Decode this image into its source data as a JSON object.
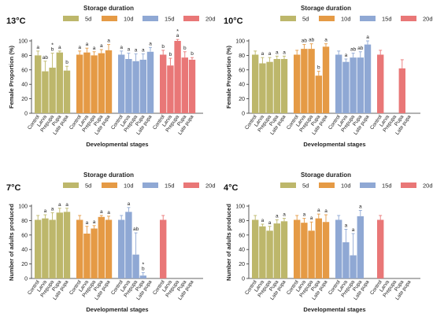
{
  "chart_data": [
    {
      "type": "bar",
      "panel": "13°C",
      "legend_title": "Storage duration",
      "legend": [
        {
          "name": "5d",
          "color": "#BDB76B"
        },
        {
          "name": "10d",
          "color": "#E59A45"
        },
        {
          "name": "15d",
          "color": "#8FA8D4"
        },
        {
          "name": "20d",
          "color": "#E97777"
        }
      ],
      "ylabel": "Female Proportion (%)",
      "xlabel": "Developmental stages",
      "ylim": [
        0,
        100
      ],
      "yticks": [
        0,
        20,
        40,
        60,
        80,
        100
      ],
      "categories": [
        "Control",
        "Larva",
        "Prepupa",
        "Pupa",
        "Late pupa"
      ],
      "series": [
        {
          "name": "5d",
          "values": [
            80,
            58,
            63,
            84,
            59
          ],
          "errors": [
            6,
            14,
            20,
            2,
            6
          ],
          "labels": [
            "a",
            "ab",
            "b",
            "a",
            "b"
          ],
          "marks": [
            "",
            "",
            "*",
            "",
            ""
          ]
        },
        {
          "name": "10d",
          "values": [
            81,
            84,
            80,
            83,
            87
          ],
          "errors": [
            5,
            6,
            5,
            5,
            8
          ],
          "labels": [
            "a",
            "a",
            "a",
            "a",
            "a"
          ],
          "marks": [
            "",
            "",
            "",
            "",
            ""
          ]
        },
        {
          "name": "15d",
          "values": [
            81,
            75,
            72,
            74,
            85
          ],
          "errors": [
            5,
            8,
            10,
            8,
            6
          ],
          "labels": [
            "a",
            "a",
            "a",
            "a",
            "a"
          ],
          "marks": [
            "",
            "",
            "",
            "",
            ""
          ]
        },
        {
          "name": "20d",
          "values": [
            81,
            66,
            100,
            77,
            74
          ],
          "errors": [
            6,
            10,
            2,
            8,
            3
          ],
          "labels": [
            "b",
            "b",
            "a",
            "b",
            "b"
          ],
          "marks": [
            "",
            "",
            "*",
            "",
            ""
          ]
        }
      ]
    },
    {
      "type": "bar",
      "panel": "10°C",
      "legend_title": "Storage duration",
      "legend": [
        {
          "name": "5d",
          "color": "#BDB76B"
        },
        {
          "name": "10d",
          "color": "#E59A45"
        },
        {
          "name": "15d",
          "color": "#8FA8D4"
        },
        {
          "name": "20d",
          "color": "#E97777"
        }
      ],
      "ylabel": "Female Proportion (%)",
      "xlabel": "Developmental stages",
      "ylim": [
        0,
        100
      ],
      "yticks": [
        0,
        20,
        40,
        60,
        80,
        100
      ],
      "categories": [
        "Control",
        "Larva",
        "Prepupa",
        "Pupa",
        "Late pupa"
      ],
      "series": [
        {
          "name": "5d",
          "values": [
            81,
            69,
            71,
            75,
            75
          ],
          "errors": [
            5,
            8,
            6,
            4,
            4
          ],
          "labels": [
            "",
            "a",
            "a",
            "a",
            "a"
          ],
          "marks": [
            "",
            "",
            "",
            "",
            ""
          ]
        },
        {
          "name": "10d",
          "values": [
            81,
            89,
            89,
            52,
            92
          ],
          "errors": [
            6,
            6,
            7,
            6,
            4
          ],
          "labels": [
            "",
            "ab",
            "ab",
            "b",
            "a"
          ],
          "marks": [
            "",
            "",
            "",
            "",
            ""
          ]
        },
        {
          "name": "15d",
          "values": [
            81,
            71,
            77,
            77,
            95
          ],
          "errors": [
            5,
            4,
            6,
            8,
            5
          ],
          "labels": [
            "",
            "a",
            "ab",
            "ab",
            "a"
          ],
          "marks": [
            "",
            "",
            "",
            "",
            ""
          ]
        },
        {
          "name": "20d",
          "values": [
            81,
            null,
            null,
            62,
            null
          ],
          "errors": [
            6,
            null,
            null,
            12,
            null
          ],
          "labels": [
            "",
            "",
            "",
            "",
            ""
          ],
          "marks": [
            "",
            "",
            "",
            "",
            ""
          ]
        }
      ]
    },
    {
      "type": "bar",
      "panel": "7°C",
      "legend_title": "Storage duration",
      "legend": [
        {
          "name": "5d",
          "color": "#BDB76B"
        },
        {
          "name": "10d",
          "color": "#E59A45"
        },
        {
          "name": "15d",
          "color": "#8FA8D4"
        },
        {
          "name": "20d",
          "color": "#E97777"
        }
      ],
      "ylabel": "Number of adults produced",
      "xlabel": "Developmental stages",
      "ylim": [
        0,
        100
      ],
      "yticks": [
        0,
        20,
        40,
        60,
        80,
        100
      ],
      "categories": [
        "Control",
        "Larva",
        "Prepupa",
        "Pupa",
        "Late pupa"
      ],
      "series": [
        {
          "name": "5d",
          "values": [
            81,
            83,
            81,
            91,
            92
          ],
          "errors": [
            6,
            5,
            10,
            6,
            5
          ],
          "labels": [
            "",
            "a",
            "a",
            "a",
            "a"
          ],
          "marks": [
            "",
            "",
            "",
            "",
            ""
          ]
        },
        {
          "name": "10d",
          "values": [
            81,
            62,
            69,
            85,
            81
          ],
          "errors": [
            6,
            10,
            4,
            2,
            5
          ],
          "labels": [
            "",
            "a",
            "a",
            "a",
            "a"
          ],
          "marks": [
            "",
            "",
            "",
            "",
            ""
          ]
        },
        {
          "name": "15d",
          "values": [
            81,
            92,
            33,
            4,
            null
          ],
          "errors": [
            6,
            6,
            30,
            4,
            null
          ],
          "labels": [
            "",
            "a",
            "ab",
            "b",
            ""
          ],
          "marks": [
            "",
            "",
            "",
            "*",
            ""
          ]
        },
        {
          "name": "20d",
          "values": [
            81,
            null,
            null,
            null,
            null
          ],
          "errors": [
            6,
            null,
            null,
            null,
            null
          ],
          "labels": [
            "",
            "",
            "",
            "",
            ""
          ],
          "marks": [
            "",
            "",
            "",
            "",
            ""
          ]
        }
      ]
    },
    {
      "type": "bar",
      "panel": "4°C",
      "legend_title": "Storage duration",
      "legend": [
        {
          "name": "5d",
          "color": "#BDB76B"
        },
        {
          "name": "10d",
          "color": "#E59A45"
        },
        {
          "name": "15d",
          "color": "#8FA8D4"
        },
        {
          "name": "20d",
          "color": "#E97777"
        }
      ],
      "ylabel": "Number of adults produced",
      "xlabel": "Developmental stages",
      "ylim": [
        0,
        100
      ],
      "yticks": [
        0,
        20,
        40,
        60,
        80,
        100
      ],
      "categories": [
        "Control",
        "Larva",
        "Prepupa",
        "Pupa",
        "Late pupa"
      ],
      "series": [
        {
          "name": "5d",
          "values": [
            81,
            72,
            66,
            76,
            79
          ],
          "errors": [
            6,
            3,
            6,
            5,
            4
          ],
          "labels": [
            "",
            "a",
            "a",
            "a",
            "a"
          ],
          "marks": [
            "",
            "",
            "",
            "",
            ""
          ]
        },
        {
          "name": "10d",
          "values": [
            81,
            77,
            66,
            83,
            78
          ],
          "errors": [
            6,
            6,
            12,
            6,
            10
          ],
          "labels": [
            "",
            "a",
            "a",
            "a",
            "a"
          ],
          "marks": [
            "",
            "",
            "",
            "",
            ""
          ]
        },
        {
          "name": "15d",
          "values": [
            81,
            50,
            32,
            86,
            null
          ],
          "errors": [
            6,
            18,
            30,
            8,
            null
          ],
          "labels": [
            "",
            "a",
            "a",
            "a",
            ""
          ],
          "marks": [
            "",
            "",
            "",
            "",
            ""
          ]
        },
        {
          "name": "20d",
          "values": [
            81,
            null,
            null,
            null,
            null
          ],
          "errors": [
            6,
            null,
            null,
            null,
            null
          ],
          "labels": [
            "",
            "",
            "",
            "",
            ""
          ],
          "marks": [
            "",
            "",
            "",
            "",
            ""
          ]
        }
      ]
    }
  ]
}
